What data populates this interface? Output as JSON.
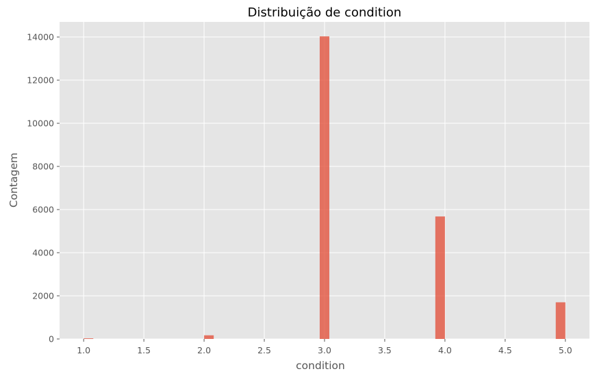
{
  "chart_data": {
    "type": "bar",
    "title": "Distribuição de condition",
    "xlabel": "condition",
    "ylabel": "Contagem",
    "xlim": [
      0.8,
      5.2
    ],
    "ylim": [
      0,
      14700
    ],
    "xticks": [
      1.0,
      1.5,
      2.0,
      2.5,
      3.0,
      3.5,
      4.0,
      4.5,
      5.0
    ],
    "xtick_labels": [
      "1.0",
      "1.5",
      "2.0",
      "2.5",
      "3.0",
      "3.5",
      "4.0",
      "4.5",
      "5.0"
    ],
    "yticks": [
      0,
      2000,
      4000,
      6000,
      8000,
      10000,
      12000,
      14000
    ],
    "ytick_labels": [
      "0",
      "2000",
      "4000",
      "6000",
      "8000",
      "10000",
      "12000",
      "14000"
    ],
    "bin_width": 0.08,
    "bars": [
      {
        "x_start": 1.0,
        "value": 30
      },
      {
        "x_start": 2.0,
        "value": 170
      },
      {
        "x_start": 2.96,
        "value": 14030
      },
      {
        "x_start": 3.92,
        "value": 5680
      },
      {
        "x_start": 4.92,
        "value": 1700
      }
    ],
    "grid": true,
    "colors": {
      "background": "#e5e5e5",
      "grid": "#ffffff",
      "bar": "#e24a33",
      "bar_opacity": "0.75"
    }
  }
}
